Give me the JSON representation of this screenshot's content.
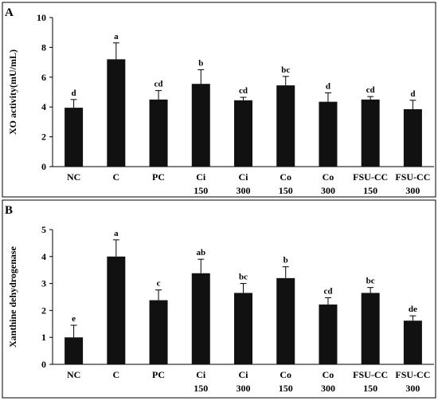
{
  "chart_data": [
    {
      "panel_label": "A",
      "type": "bar",
      "categories": [
        [
          "NC"
        ],
        [
          "C"
        ],
        [
          "PC"
        ],
        [
          "Ci",
          "150"
        ],
        [
          "Ci",
          "300"
        ],
        [
          "Co",
          "150"
        ],
        [
          "Co",
          "300"
        ],
        [
          "FSU-CC",
          "150"
        ],
        [
          "FSU-CC",
          "300"
        ]
      ],
      "values": [
        3.95,
        7.2,
        4.5,
        5.55,
        4.45,
        5.45,
        4.35,
        4.5,
        3.85
      ],
      "errors": [
        0.55,
        1.1,
        0.6,
        0.95,
        0.2,
        0.6,
        0.6,
        0.2,
        0.6
      ],
      "significance": [
        "d",
        "a",
        "cd",
        "b",
        "cd",
        "bc",
        "d",
        "cd",
        "d"
      ],
      "ylabel": "XO activity(mU/mL)",
      "ylim": [
        0,
        10
      ],
      "yticks": [
        0,
        2,
        4,
        6,
        8,
        10
      ],
      "grid": false
    },
    {
      "panel_label": "B",
      "type": "bar",
      "categories": [
        [
          "NC"
        ],
        [
          "C"
        ],
        [
          "PC"
        ],
        [
          "Ci",
          "150"
        ],
        [
          "Ci",
          "300"
        ],
        [
          "Co",
          "150"
        ],
        [
          "Co",
          "300"
        ],
        [
          "FSU-CC",
          "150"
        ],
        [
          "FSU-CC",
          "300"
        ]
      ],
      "values": [
        1.0,
        4.0,
        2.38,
        3.38,
        2.65,
        3.2,
        2.22,
        2.65,
        1.62
      ],
      "errors": [
        0.45,
        0.62,
        0.38,
        0.52,
        0.35,
        0.42,
        0.25,
        0.2,
        0.18
      ],
      "significance": [
        "e",
        "a",
        "c",
        "ab",
        "bc",
        "b",
        "cd",
        "bc",
        "de"
      ],
      "ylabel": "Xanthine dehydrogenase",
      "ylim": [
        0,
        5
      ],
      "yticks": [
        0,
        1,
        2,
        3,
        4,
        5
      ],
      "grid": false
    }
  ]
}
